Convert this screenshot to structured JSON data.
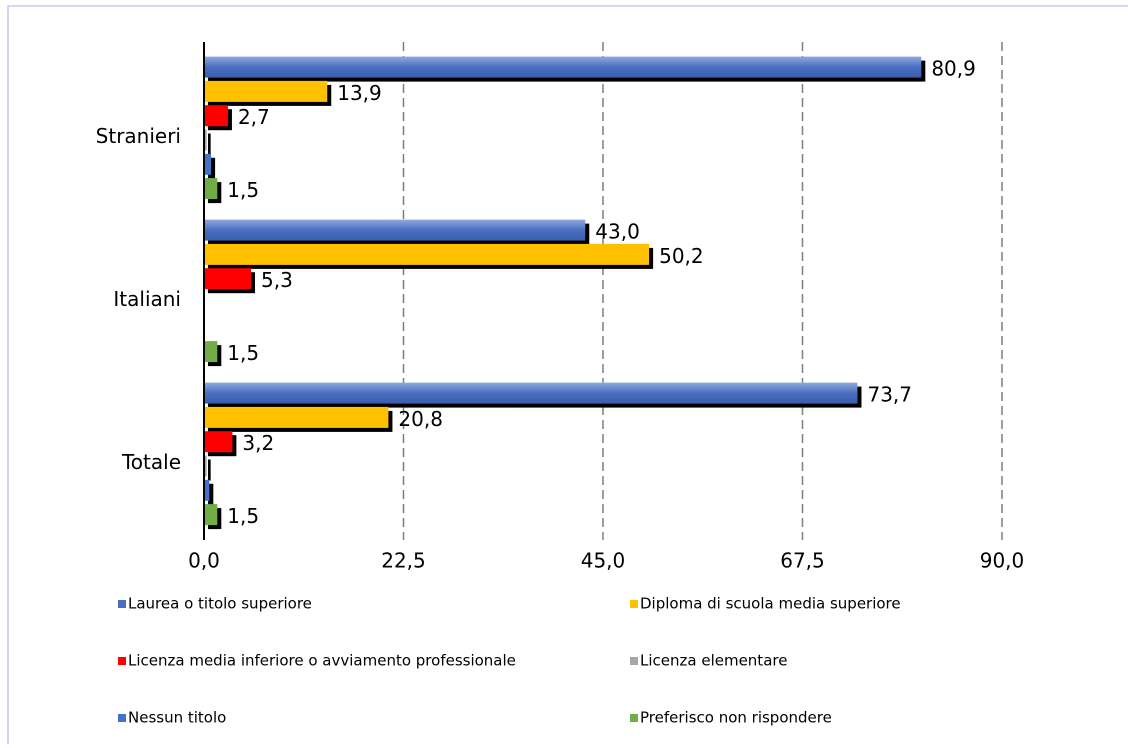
{
  "chart_data": {
    "type": "bar",
    "orientation": "horizontal",
    "categories": [
      "Stranieri",
      "Italiani",
      "Totale"
    ],
    "series": [
      {
        "name": "Laurea o titolo superiore",
        "color": "#4a6fc0",
        "values": [
          80.9,
          43.0,
          73.7
        ],
        "value_labels": [
          "80,9",
          "43,0",
          "73,7"
        ]
      },
      {
        "name": "Diploma di scuola media superiore",
        "color": "#ffc000",
        "values": [
          13.9,
          50.2,
          20.8
        ],
        "value_labels": [
          "13,9",
          "50,2",
          "20,8"
        ]
      },
      {
        "name": "Licenza media inferiore o avviamento professionale",
        "color": "#ff0000",
        "values": [
          2.7,
          5.3,
          3.2
        ],
        "value_labels": [
          "2,7",
          "5,3",
          "3,2"
        ]
      },
      {
        "name": "Licenza elementare",
        "color": "#a6a6a6",
        "values": [
          0.3,
          0,
          0.3
        ],
        "value_labels": [
          null,
          null,
          null
        ]
      },
      {
        "name": "Nessun titolo",
        "color": "#4472c4",
        "values": [
          0.8,
          0,
          0.6
        ],
        "value_labels": [
          null,
          null,
          null
        ]
      },
      {
        "name": "Preferisco non rispondere",
        "color": "#70ad47",
        "values": [
          1.5,
          1.5,
          1.5
        ],
        "value_labels": [
          "1,5",
          "1,5",
          "1,5"
        ]
      }
    ],
    "xlim": [
      0,
      90
    ],
    "xticks": [
      {
        "value": 0,
        "label": "0,0"
      },
      {
        "value": 22.5,
        "label": "22,5"
      },
      {
        "value": 45,
        "label": "45,0"
      },
      {
        "value": 67.5,
        "label": "67,5"
      },
      {
        "value": 90,
        "label": "90,0"
      }
    ],
    "grid": true,
    "legend": "bottom"
  }
}
